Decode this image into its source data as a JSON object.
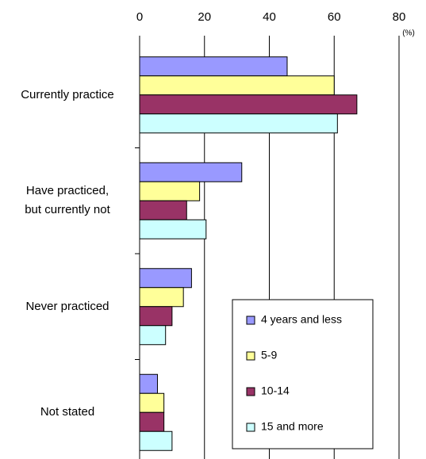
{
  "chart_data": {
    "type": "bar",
    "orientation": "horizontal",
    "x_unit": "(%)",
    "categories": [
      "Currently practice",
      "Have practiced,\nbut currently not",
      "Never practiced",
      "Not stated"
    ],
    "series": [
      {
        "name": "4 years and less",
        "color": "#9999ff",
        "values": [
          45.5,
          31.5,
          16,
          5.5
        ]
      },
      {
        "name": "5-9",
        "color": "#ffff99",
        "values": [
          60,
          18.5,
          13.5,
          7.5
        ]
      },
      {
        "name": "10-14",
        "color": "#993366",
        "values": [
          67,
          14.5,
          10,
          7.5
        ]
      },
      {
        "name": "15 and more",
        "color": "#ccffff",
        "values": [
          61,
          20.5,
          8,
          10
        ]
      }
    ],
    "xlim": [
      0,
      80
    ],
    "xticks": [
      0,
      20,
      40,
      60,
      80
    ],
    "grid": true,
    "legend": "lower-right"
  }
}
